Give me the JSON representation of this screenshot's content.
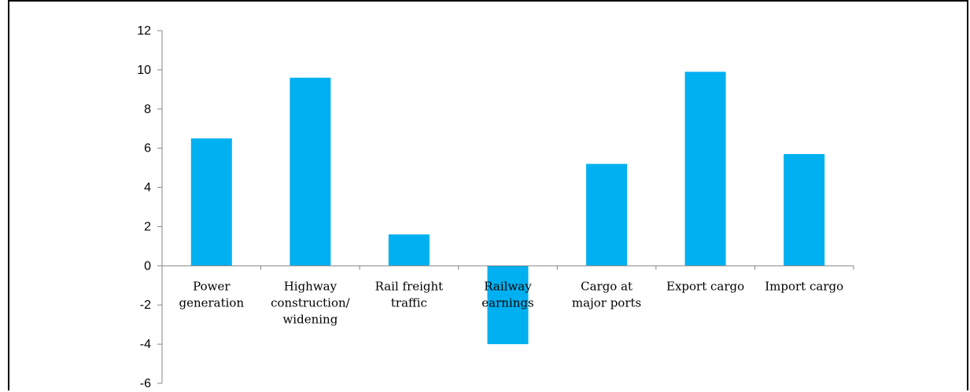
{
  "chart_data": {
    "type": "bar",
    "title": "",
    "xlabel": "",
    "ylabel": "",
    "ylim": [
      -6,
      12
    ],
    "yticks": [
      12,
      10,
      8,
      6,
      4,
      2,
      0,
      -2,
      -4,
      -6
    ],
    "grid": false,
    "legend": "none",
    "categories": [
      [
        "Power",
        "generation"
      ],
      [
        "Highway",
        "construction/",
        "widening"
      ],
      [
        "Rail freight",
        "traffic"
      ],
      [
        "Railway",
        "earnings"
      ],
      [
        "Cargo at",
        "major ports"
      ],
      [
        "Export cargo"
      ],
      [
        "Import cargo"
      ]
    ],
    "values": [
      6.5,
      9.6,
      1.6,
      -4.0,
      5.2,
      9.9,
      5.7
    ],
    "bar_color": "#00b0f0",
    "axis_color": "#868686"
  }
}
